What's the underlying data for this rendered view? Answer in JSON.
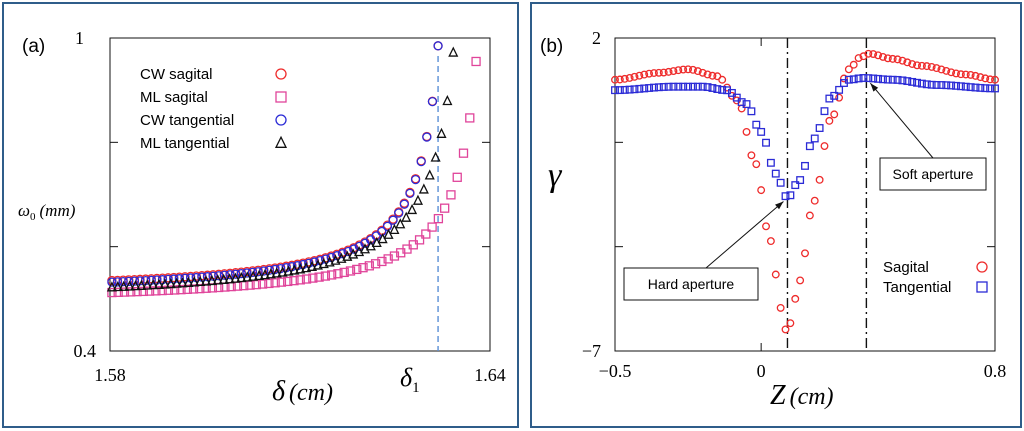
{
  "chart_data": [
    {
      "type": "scatter",
      "panel_label": "(a)",
      "xlabel_symbol": "δ",
      "xlabel_unit": "(cm)",
      "ylabel_symbol": "ω",
      "ylabel_sub": "0",
      "ylabel_unit": "(mm)",
      "xlim": [
        1.58,
        1.64
      ],
      "ylim": [
        0.4,
        1.0
      ],
      "x_ticks": [
        {
          "value": 1.58,
          "label": "1.58"
        },
        {
          "value": 1.64,
          "label": "1.64"
        }
      ],
      "y_ticks": [
        {
          "value": 0.4,
          "label": "0.4"
        },
        {
          "value": 1.0,
          "label": "1"
        }
      ],
      "marker_line": {
        "value": 1.6318,
        "label": "δ",
        "label_sub": "1",
        "color": "#5b8fd6"
      },
      "legend": {
        "position": "top-left"
      },
      "series": [
        {
          "name": "CW sagital",
          "marker": "circle",
          "color": "#ee2b2b",
          "x0": 1.5803,
          "x_end": 1.6318,
          "y_start": 0.535,
          "y_end": 0.985,
          "pole": 1.6335,
          "curv": 0.0014
        },
        {
          "name": "ML sagital",
          "marker": "square",
          "color": "#e0449a",
          "x0": 1.5803,
          "x_end": 1.6378,
          "y_start": 0.512,
          "y_end": 0.955,
          "pole": 1.6395,
          "curv": 0.0016
        },
        {
          "name": "CW tangential",
          "marker": "circle",
          "color": "#2b2bd6",
          "x0": 1.5803,
          "x_end": 1.6318,
          "y_start": 0.532,
          "y_end": 0.985,
          "pole": 1.6335,
          "curv": 0.0014
        },
        {
          "name": "ML tangential",
          "marker": "triangle",
          "color": "#111111",
          "x0": 1.5803,
          "x_end": 1.6342,
          "y_start": 0.522,
          "y_end": 0.972,
          "pole": 1.6365,
          "curv": 0.0016
        }
      ]
    },
    {
      "type": "scatter",
      "panel_label": "(b)",
      "xlabel_symbol": "Z",
      "xlabel_unit": "(cm)",
      "ylabel_symbol": "γ",
      "xlim": [
        -0.5,
        0.8
      ],
      "ylim": [
        -7,
        2
      ],
      "x_ticks": [
        {
          "value": -0.5,
          "label": "−0.5"
        },
        {
          "value": 0,
          "label": "0"
        },
        {
          "value": 0.8,
          "label": "0.8"
        }
      ],
      "y_ticks": [
        {
          "value": -7,
          "label": "−7"
        },
        {
          "value": 2,
          "label": "2"
        }
      ],
      "vlines": [
        0.09,
        0.36
      ],
      "annotations": [
        {
          "text": "Hard aperture",
          "target_x": 0.09,
          "target_y": -2.7
        },
        {
          "text": "Soft aperture",
          "target_x": 0.36,
          "target_y": 0.7
        }
      ],
      "legend": {
        "position": "bottom-right"
      },
      "series": [
        {
          "name": "Sagital",
          "marker": "circle",
          "color": "#ee2b2b",
          "x": [
            -0.5,
            -0.35,
            -0.25,
            -0.15,
            -0.08,
            -0.02,
            0.03,
            0.07,
            0.085,
            0.1,
            0.13,
            0.18,
            0.24,
            0.3,
            0.34,
            0.37,
            0.45,
            0.55,
            0.7,
            0.8
          ],
          "y": [
            0.8,
            1.0,
            1.1,
            0.9,
            0.2,
            -1.6,
            -3.8,
            -5.8,
            -6.4,
            -6.2,
            -5.0,
            -2.7,
            -0.3,
            1.1,
            1.45,
            1.55,
            1.4,
            1.2,
            0.95,
            0.8
          ]
        },
        {
          "name": "Tangential",
          "marker": "square",
          "color": "#2b2bd6",
          "x": [
            -0.5,
            -0.3,
            -0.2,
            -0.12,
            -0.05,
            0.0,
            0.05,
            0.09,
            0.13,
            0.18,
            0.24,
            0.3,
            0.35,
            0.45,
            0.6,
            0.8
          ],
          "y": [
            0.5,
            0.6,
            0.6,
            0.5,
            0.1,
            -0.7,
            -1.9,
            -2.6,
            -2.1,
            -0.9,
            0.3,
            0.8,
            0.85,
            0.8,
            0.65,
            0.55
          ]
        }
      ]
    }
  ]
}
